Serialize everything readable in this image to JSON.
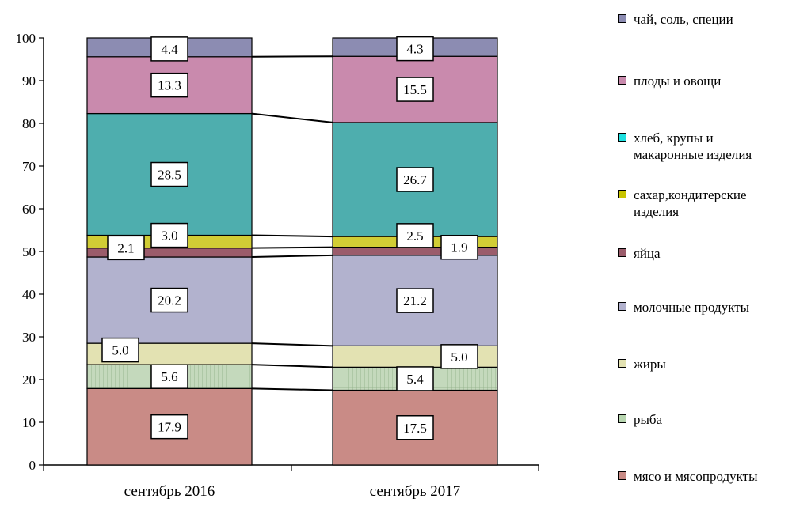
{
  "chart_data": {
    "type": "bar",
    "stacked": true,
    "percent": true,
    "categories": [
      "сентябрь 2016",
      "сентябрь 2017"
    ],
    "ylim": [
      0,
      100
    ],
    "yticks": [
      "0",
      "10",
      "20",
      "30",
      "40",
      "50",
      "60",
      "70",
      "80",
      "90",
      "100"
    ],
    "grid": false,
    "legend_position": "right",
    "series": [
      {
        "name": "мясо и мясопродукты",
        "values": [
          17.9,
          17.5
        ],
        "color": "#c98b86"
      },
      {
        "name": "рыба",
        "values": [
          5.6,
          5.4
        ],
        "color": "#c4d9bc",
        "pattern": "grid"
      },
      {
        "name": "жиры",
        "values": [
          5.0,
          5.0
        ],
        "color": "#e3e2b2"
      },
      {
        "name": "молочные продукты",
        "values": [
          20.2,
          21.2
        ],
        "color": "#b2b2ce"
      },
      {
        "name": "яйца",
        "values": [
          2.1,
          1.9
        ],
        "color": "#9b5c6b"
      },
      {
        "name": "сахар,кондитерские изделия",
        "values": [
          3.0,
          2.5
        ],
        "color": "#d1cd35"
      },
      {
        "name": "хлеб, крупы и макаронные изделия",
        "values": [
          28.5,
          26.7
        ],
        "color": "#4eaeae"
      },
      {
        "name": "плоды и овощи",
        "values": [
          13.3,
          15.5
        ],
        "color": "#c98aad"
      },
      {
        "name": "чай, соль, специи",
        "values": [
          4.4,
          4.3
        ],
        "color": "#8c8cb2"
      }
    ],
    "data_labels": [
      [
        "17.9",
        "5.6",
        "5.0",
        "20.2",
        "2.1",
        "3.0",
        "28.5",
        "13.3",
        "4.4"
      ],
      [
        "17.5",
        "5.4",
        "5.0",
        "21.2",
        "1.9",
        "2.5",
        "26.7",
        "15.5",
        "4.3"
      ]
    ]
  },
  "legend": {
    "items": [
      {
        "label": "чай, соль, специи",
        "color": "#8c8cb2"
      },
      {
        "label": "плоды и овощи",
        "color": "#c98aad"
      },
      {
        "label": "хлеб, крупы и\nмакаронные изделия",
        "color": "#1fe0e0"
      },
      {
        "label": "сахар,кондитерские\nизделия",
        "color": "#c8c400"
      },
      {
        "label": "яйца",
        "color": "#9b5c6b"
      },
      {
        "label": "молочные продукты",
        "color": "#b2b2ce"
      },
      {
        "label": "жиры",
        "color": "#e3e2b2"
      },
      {
        "label": "рыба",
        "color": "#b8d6b0"
      },
      {
        "label": "мясо и мясопродукты",
        "color": "#c98b86"
      }
    ]
  }
}
